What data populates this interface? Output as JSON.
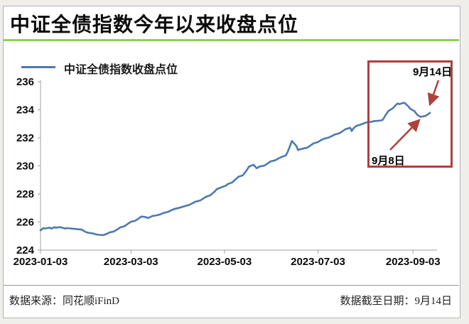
{
  "header": {
    "title": "中证全债指数今年以来收盘点位",
    "accent_color": "#92d050"
  },
  "legend": {
    "label": "中证全债指数收盘点位",
    "line_color": "#4e79ae"
  },
  "chart_data": {
    "type": "line",
    "title": "中证全债指数今年以来收盘点位",
    "xlabel": "",
    "ylabel": "",
    "grid": false,
    "legend_position": "top-left",
    "ylim": [
      224,
      236
    ],
    "xlim": [
      "2023-01-03",
      "2023-09-14"
    ],
    "y_ticks": [
      224,
      226,
      228,
      230,
      232,
      234,
      236
    ],
    "x_ticks": [
      "2023-01-03",
      "2023-03-03",
      "2023-05-03",
      "2023-07-03",
      "2023-09-03"
    ],
    "axis_color": "#a0a0a0",
    "series": [
      {
        "name": "中证全债指数收盘点位",
        "color": "#4e79ae",
        "points": [
          [
            "2023-01-03",
            225.4
          ],
          [
            "2023-01-04",
            225.5
          ],
          [
            "2023-01-05",
            225.57
          ],
          [
            "2023-01-06",
            225.54
          ],
          [
            "2023-01-09",
            225.6
          ],
          [
            "2023-01-10",
            225.53
          ],
          [
            "2023-01-11",
            225.58
          ],
          [
            "2023-01-12",
            225.63
          ],
          [
            "2023-01-13",
            225.6
          ],
          [
            "2023-01-16",
            225.64
          ],
          [
            "2023-01-17",
            225.59
          ],
          [
            "2023-01-18",
            225.57
          ],
          [
            "2023-01-19",
            225.54
          ],
          [
            "2023-01-20",
            225.57
          ],
          [
            "2023-01-30",
            225.46
          ],
          [
            "2023-01-31",
            225.38
          ],
          [
            "2023-02-01",
            225.32
          ],
          [
            "2023-02-02",
            225.27
          ],
          [
            "2023-02-03",
            225.24
          ],
          [
            "2023-02-06",
            225.19
          ],
          [
            "2023-02-07",
            225.16
          ],
          [
            "2023-02-08",
            225.13
          ],
          [
            "2023-02-09",
            225.11
          ],
          [
            "2023-02-10",
            225.09
          ],
          [
            "2023-02-13",
            225.07
          ],
          [
            "2023-02-14",
            225.11
          ],
          [
            "2023-02-15",
            225.15
          ],
          [
            "2023-02-16",
            225.2
          ],
          [
            "2023-02-17",
            225.26
          ],
          [
            "2023-02-20",
            225.33
          ],
          [
            "2023-02-21",
            225.4
          ],
          [
            "2023-02-22",
            225.47
          ],
          [
            "2023-02-23",
            225.54
          ],
          [
            "2023-02-24",
            225.62
          ],
          [
            "2023-02-27",
            225.71
          ],
          [
            "2023-02-28",
            225.8
          ],
          [
            "2023-03-01",
            225.88
          ],
          [
            "2023-03-02",
            225.95
          ],
          [
            "2023-03-03",
            226.02
          ],
          [
            "2023-03-06",
            226.1
          ],
          [
            "2023-03-07",
            226.18
          ],
          [
            "2023-03-08",
            226.26
          ],
          [
            "2023-03-09",
            226.33
          ],
          [
            "2023-03-10",
            226.4
          ],
          [
            "2023-03-13",
            226.34
          ],
          [
            "2023-03-14",
            226.28
          ],
          [
            "2023-03-15",
            226.33
          ],
          [
            "2023-03-16",
            226.38
          ],
          [
            "2023-03-17",
            226.43
          ],
          [
            "2023-03-20",
            226.48
          ],
          [
            "2023-03-22",
            226.54
          ],
          [
            "2023-03-24",
            226.64
          ],
          [
            "2023-03-27",
            226.72
          ],
          [
            "2023-03-29",
            226.82
          ],
          [
            "2023-03-31",
            226.92
          ],
          [
            "2023-04-04",
            227.03
          ],
          [
            "2023-04-06",
            227.1
          ],
          [
            "2023-04-10",
            227.22
          ],
          [
            "2023-04-12",
            227.33
          ],
          [
            "2023-04-14",
            227.45
          ],
          [
            "2023-04-17",
            227.53
          ],
          [
            "2023-04-19",
            227.66
          ],
          [
            "2023-04-21",
            227.8
          ],
          [
            "2023-04-24",
            227.92
          ],
          [
            "2023-04-25",
            228.02
          ],
          [
            "2023-04-26",
            228.12
          ],
          [
            "2023-04-27",
            228.22
          ],
          [
            "2023-04-28",
            228.35
          ],
          [
            "2023-05-04",
            228.6
          ],
          [
            "2023-05-05",
            228.7
          ],
          [
            "2023-05-08",
            228.82
          ],
          [
            "2023-05-09",
            228.92
          ],
          [
            "2023-05-10",
            229.02
          ],
          [
            "2023-05-11",
            229.12
          ],
          [
            "2023-05-12",
            229.22
          ],
          [
            "2023-05-15",
            229.33
          ],
          [
            "2023-05-16",
            229.47
          ],
          [
            "2023-05-17",
            229.62
          ],
          [
            "2023-05-18",
            229.78
          ],
          [
            "2023-05-19",
            229.95
          ],
          [
            "2023-05-22",
            230.08
          ],
          [
            "2023-05-23",
            229.96
          ],
          [
            "2023-05-24",
            229.84
          ],
          [
            "2023-05-25",
            229.9
          ],
          [
            "2023-05-26",
            229.96
          ],
          [
            "2023-05-29",
            230.02
          ],
          [
            "2023-05-30",
            230.09
          ],
          [
            "2023-05-31",
            230.16
          ],
          [
            "2023-06-01",
            230.24
          ],
          [
            "2023-06-02",
            230.32
          ],
          [
            "2023-06-05",
            230.4
          ],
          [
            "2023-06-06",
            230.45
          ],
          [
            "2023-06-07",
            230.52
          ],
          [
            "2023-06-08",
            230.57
          ],
          [
            "2023-06-09",
            230.63
          ],
          [
            "2023-06-12",
            230.75
          ],
          [
            "2023-06-13",
            230.95
          ],
          [
            "2023-06-14",
            231.2
          ],
          [
            "2023-06-15",
            231.5
          ],
          [
            "2023-06-16",
            231.78
          ],
          [
            "2023-06-19",
            231.4
          ],
          [
            "2023-06-20",
            231.12
          ],
          [
            "2023-06-21",
            231.18
          ],
          [
            "2023-06-26",
            231.3
          ],
          [
            "2023-06-28",
            231.45
          ],
          [
            "2023-06-30",
            231.6
          ],
          [
            "2023-07-03",
            231.7
          ],
          [
            "2023-07-05",
            231.84
          ],
          [
            "2023-07-07",
            231.94
          ],
          [
            "2023-07-10",
            232.02
          ],
          [
            "2023-07-12",
            232.12
          ],
          [
            "2023-07-14",
            232.24
          ],
          [
            "2023-07-17",
            232.33
          ],
          [
            "2023-07-19",
            232.47
          ],
          [
            "2023-07-21",
            232.62
          ],
          [
            "2023-07-24",
            232.72
          ],
          [
            "2023-07-25",
            232.48
          ],
          [
            "2023-07-26",
            232.66
          ],
          [
            "2023-07-28",
            232.85
          ],
          [
            "2023-07-31",
            232.95
          ],
          [
            "2023-08-02",
            233.04
          ],
          [
            "2023-08-04",
            233.11
          ],
          [
            "2023-08-07",
            233.15
          ],
          [
            "2023-08-09",
            233.2
          ],
          [
            "2023-08-11",
            233.21
          ],
          [
            "2023-08-14",
            233.26
          ],
          [
            "2023-08-15",
            233.42
          ],
          [
            "2023-08-16",
            233.6
          ],
          [
            "2023-08-17",
            233.76
          ],
          [
            "2023-08-18",
            233.92
          ],
          [
            "2023-08-21",
            234.12
          ],
          [
            "2023-08-22",
            234.26
          ],
          [
            "2023-08-23",
            234.36
          ],
          [
            "2023-08-24",
            234.45
          ],
          [
            "2023-08-25",
            234.4
          ],
          [
            "2023-08-28",
            234.5
          ],
          [
            "2023-08-29",
            234.44
          ],
          [
            "2023-08-30",
            234.34
          ],
          [
            "2023-08-31",
            234.24
          ],
          [
            "2023-09-01",
            234.08
          ],
          [
            "2023-09-04",
            233.9
          ],
          [
            "2023-09-05",
            233.74
          ],
          [
            "2023-09-06",
            233.63
          ],
          [
            "2023-09-07",
            233.55
          ],
          [
            "2023-09-08",
            233.5
          ],
          [
            "2023-09-11",
            233.56
          ],
          [
            "2023-09-12",
            233.62
          ],
          [
            "2023-09-13",
            233.7
          ],
          [
            "2023-09-14",
            233.78
          ]
        ]
      }
    ]
  },
  "annotations": {
    "box_color": "#ae403d",
    "items": [
      {
        "label": "9月14日",
        "date": "2023-09-14"
      },
      {
        "label": "9月8日",
        "date": "2023-09-08"
      }
    ]
  },
  "footer": {
    "source": "数据来源：同花顺iFinD",
    "cutoff": "数据截至日期：9月14日"
  }
}
